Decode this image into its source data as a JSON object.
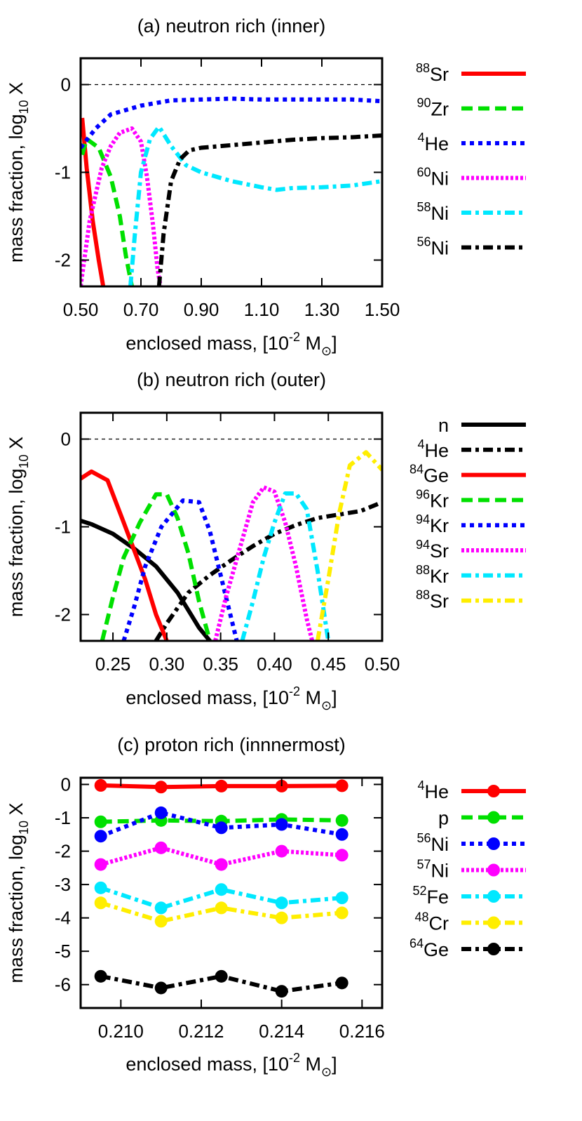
{
  "chart_data": [
    {
      "type": "line",
      "title": "(a) neutron rich (inner)",
      "xlabel": {
        "text": "enclosed mass, [10",
        "exp": "-2",
        "unit": " M",
        "sub": "⊙",
        "close": "]"
      },
      "ylabel": {
        "text": "mass fraction, log",
        "sub": "10",
        "tail": " X"
      },
      "xlim": [
        0.5,
        1.5
      ],
      "ylim": [
        -2.3,
        0.3
      ],
      "xticks": [
        0.5,
        0.7,
        0.9,
        1.1,
        1.3,
        1.5
      ],
      "xtick_labels": [
        "0.50",
        "0.70",
        "0.90",
        "1.10",
        "1.30",
        "1.50"
      ],
      "yticks": [
        0,
        -1,
        -2
      ],
      "ytick_labels": [
        "0",
        "-1",
        "-2"
      ],
      "reference_line": 0,
      "series": [
        {
          "name": "Sr",
          "mass": "88",
          "color": "#ff0000",
          "dash": "solid",
          "x": [
            0.505,
            0.52,
            0.54,
            0.56,
            0.575
          ],
          "y": [
            -0.38,
            -0.95,
            -1.55,
            -2.0,
            -2.3
          ]
        },
        {
          "name": "Zr",
          "mass": "90",
          "color": "#00e000",
          "dash": "dash",
          "x": [
            0.505,
            0.52,
            0.56,
            0.6,
            0.63,
            0.65,
            0.67
          ],
          "y": [
            -0.8,
            -0.62,
            -0.72,
            -1.05,
            -1.5,
            -1.95,
            -2.3
          ]
        },
        {
          "name": "He",
          "mass": "4",
          "color": "#0000ff",
          "dash": "dot",
          "x": [
            0.5,
            0.55,
            0.6,
            0.7,
            0.8,
            0.9,
            1.0,
            1.1,
            1.2,
            1.3,
            1.4,
            1.5
          ],
          "y": [
            -0.72,
            -0.5,
            -0.34,
            -0.24,
            -0.18,
            -0.17,
            -0.16,
            -0.17,
            -0.17,
            -0.17,
            -0.17,
            -0.19
          ]
        },
        {
          "name": "Ni",
          "mass": "60",
          "color": "#ff00ff",
          "dash": "densedot",
          "x": [
            0.5,
            0.53,
            0.57,
            0.6,
            0.63,
            0.67,
            0.7,
            0.72,
            0.74,
            0.755,
            0.765
          ],
          "y": [
            -2.3,
            -1.55,
            -0.95,
            -0.7,
            -0.55,
            -0.5,
            -0.65,
            -1.05,
            -1.6,
            -2.1,
            -2.3
          ]
        },
        {
          "name": "Ni",
          "mass": "58",
          "color": "#00e8ff",
          "dash": "dashdot",
          "x": [
            0.665,
            0.68,
            0.7,
            0.73,
            0.76,
            0.8,
            0.85,
            0.9,
            1.0,
            1.1,
            1.15,
            1.2,
            1.3,
            1.4,
            1.5
          ],
          "y": [
            -2.3,
            -1.7,
            -1.0,
            -0.62,
            -0.48,
            -0.7,
            -0.92,
            -1.0,
            -1.1,
            -1.17,
            -1.2,
            -1.18,
            -1.17,
            -1.15,
            -1.1
          ]
        },
        {
          "name": "Ni",
          "mass": "56",
          "color": "#000000",
          "dash": "dashdot",
          "x": [
            0.76,
            0.775,
            0.8,
            0.83,
            0.86,
            0.9,
            1.0,
            1.1,
            1.2,
            1.3,
            1.4,
            1.5
          ],
          "y": [
            -2.3,
            -1.7,
            -1.1,
            -0.85,
            -0.75,
            -0.72,
            -0.69,
            -0.66,
            -0.63,
            -0.61,
            -0.6,
            -0.58
          ]
        }
      ]
    },
    {
      "type": "line",
      "title": "(b) neutron rich (outer)",
      "xlabel": {
        "text": "enclosed mass, [10",
        "exp": "-2",
        "unit": " M",
        "sub": "⊙",
        "close": "]"
      },
      "ylabel": {
        "text": "mass fraction, log",
        "sub": "10",
        "tail": " X"
      },
      "xlim": [
        0.22,
        0.5
      ],
      "ylim": [
        -2.3,
        0.3
      ],
      "xticks": [
        0.25,
        0.3,
        0.35,
        0.4,
        0.45,
        0.5
      ],
      "xtick_labels": [
        "0.25",
        "0.30",
        "0.35",
        "0.40",
        "0.45",
        "0.50"
      ],
      "yticks": [
        0,
        -1,
        -2
      ],
      "ytick_labels": [
        "0",
        "-1",
        "-2"
      ],
      "reference_line": 0,
      "series": [
        {
          "name": "n",
          "mass": "",
          "color": "#000000",
          "dash": "solid",
          "x": [
            0.22,
            0.23,
            0.25,
            0.27,
            0.29,
            0.31,
            0.32,
            0.33,
            0.34
          ],
          "y": [
            -0.93,
            -0.97,
            -1.08,
            -1.25,
            -1.45,
            -1.75,
            -1.95,
            -2.15,
            -2.3
          ]
        },
        {
          "name": "He",
          "mass": "4",
          "color": "#000000",
          "dash": "dashdot",
          "x": [
            0.29,
            0.3,
            0.32,
            0.34,
            0.36,
            0.38,
            0.4,
            0.42,
            0.44,
            0.46,
            0.48,
            0.5
          ],
          "y": [
            -2.3,
            -2.1,
            -1.75,
            -1.55,
            -1.38,
            -1.22,
            -1.08,
            -0.98,
            -0.9,
            -0.86,
            -0.82,
            -0.72
          ]
        },
        {
          "name": "Ge",
          "mass": "84",
          "color": "#ff0000",
          "dash": "solid",
          "x": [
            0.22,
            0.23,
            0.245,
            0.26,
            0.28,
            0.29,
            0.3
          ],
          "y": [
            -0.45,
            -0.37,
            -0.47,
            -0.95,
            -1.6,
            -2.0,
            -2.3
          ]
        },
        {
          "name": "Kr",
          "mass": "96",
          "color": "#00e000",
          "dash": "dash",
          "x": [
            0.24,
            0.25,
            0.26,
            0.275,
            0.29,
            0.3,
            0.31,
            0.32,
            0.33,
            0.34
          ],
          "y": [
            -2.3,
            -1.8,
            -1.35,
            -0.95,
            -0.63,
            -0.63,
            -0.9,
            -1.3,
            -1.85,
            -2.3
          ]
        },
        {
          "name": "Kr",
          "mass": "94",
          "color": "#0000ff",
          "dash": "dot",
          "x": [
            0.26,
            0.27,
            0.28,
            0.295,
            0.315,
            0.33,
            0.34,
            0.355,
            0.365
          ],
          "y": [
            -2.3,
            -1.9,
            -1.45,
            -1.0,
            -0.7,
            -0.72,
            -1.05,
            -1.8,
            -2.3
          ]
        },
        {
          "name": "Sr",
          "mass": "94",
          "color": "#ff00ff",
          "dash": "densedot",
          "x": [
            0.345,
            0.355,
            0.37,
            0.38,
            0.39,
            0.4,
            0.41,
            0.42,
            0.43,
            0.435
          ],
          "y": [
            -2.3,
            -1.8,
            -1.15,
            -0.72,
            -0.55,
            -0.6,
            -0.95,
            -1.45,
            -2.05,
            -2.3
          ]
        },
        {
          "name": "Kr",
          "mass": "88",
          "color": "#00e8ff",
          "dash": "dashdot",
          "x": [
            0.37,
            0.38,
            0.39,
            0.4,
            0.41,
            0.42,
            0.43,
            0.44,
            0.45
          ],
          "y": [
            -2.3,
            -1.85,
            -1.35,
            -0.95,
            -0.62,
            -0.62,
            -0.8,
            -1.5,
            -2.3
          ]
        },
        {
          "name": "Sr",
          "mass": "88",
          "color": "#ffee00",
          "dash": "dashdot",
          "x": [
            0.44,
            0.45,
            0.46,
            0.47,
            0.485,
            0.5
          ],
          "y": [
            -2.3,
            -1.6,
            -0.85,
            -0.3,
            -0.15,
            -0.35
          ]
        }
      ]
    },
    {
      "type": "line",
      "title": "(c) proton rich (innnermost)",
      "xlabel": {
        "text": "enclosed mass, [10",
        "exp": "-2",
        "unit": " M",
        "sub": "⊙",
        "close": "]"
      },
      "ylabel": {
        "text": "mass fraction, log",
        "sub": "10",
        "tail": " X"
      },
      "xlim": [
        0.209,
        0.2165
      ],
      "ylim": [
        -6.7,
        0.2
      ],
      "xticks": [
        0.21,
        0.212,
        0.214,
        0.216
      ],
      "xtick_labels": [
        "0.210",
        "0.212",
        "0.214",
        "0.216"
      ],
      "yticks": [
        0,
        -1,
        -2,
        -3,
        -4,
        -5,
        -6
      ],
      "ytick_labels": [
        "0",
        "-1",
        "-2",
        "-3",
        "-4",
        "-5",
        "-6"
      ],
      "series": [
        {
          "name": "He",
          "mass": "4",
          "color": "#ff0000",
          "dash": "solid",
          "marker": true,
          "x": [
            0.2095,
            0.211,
            0.2125,
            0.214,
            0.2155
          ],
          "y": [
            -0.03,
            -0.08,
            -0.05,
            -0.05,
            -0.04
          ]
        },
        {
          "name": "p",
          "mass": "",
          "color": "#00e000",
          "dash": "dash",
          "marker": true,
          "x": [
            0.2095,
            0.211,
            0.2125,
            0.214,
            0.2155
          ],
          "y": [
            -1.12,
            -1.08,
            -1.1,
            -1.05,
            -1.08
          ]
        },
        {
          "name": "Ni",
          "mass": "56",
          "color": "#0000ff",
          "dash": "dot",
          "marker": true,
          "x": [
            0.2095,
            0.211,
            0.2125,
            0.214,
            0.2155
          ],
          "y": [
            -1.55,
            -0.85,
            -1.3,
            -1.2,
            -1.5
          ]
        },
        {
          "name": "Ni",
          "mass": "57",
          "color": "#ff00ff",
          "dash": "densedot",
          "marker": true,
          "x": [
            0.2095,
            0.211,
            0.2125,
            0.214,
            0.2155
          ],
          "y": [
            -2.4,
            -1.9,
            -2.4,
            -2.0,
            -2.12
          ]
        },
        {
          "name": "Fe",
          "mass": "52",
          "color": "#00e8ff",
          "dash": "dashdot",
          "marker": true,
          "x": [
            0.2095,
            0.211,
            0.2125,
            0.214,
            0.2155
          ],
          "y": [
            -3.1,
            -3.7,
            -3.15,
            -3.55,
            -3.4
          ]
        },
        {
          "name": "Cr",
          "mass": "48",
          "color": "#ffee00",
          "dash": "dashdot",
          "marker": true,
          "x": [
            0.2095,
            0.211,
            0.2125,
            0.214,
            0.2155
          ],
          "y": [
            -3.55,
            -4.1,
            -3.7,
            -4.0,
            -3.85
          ]
        },
        {
          "name": "Ge",
          "mass": "64",
          "color": "#000000",
          "dash": "dashdot",
          "marker": true,
          "x": [
            0.2095,
            0.211,
            0.2125,
            0.214,
            0.2155
          ],
          "y": [
            -5.75,
            -6.1,
            -5.75,
            -6.2,
            -5.95
          ]
        }
      ]
    }
  ]
}
